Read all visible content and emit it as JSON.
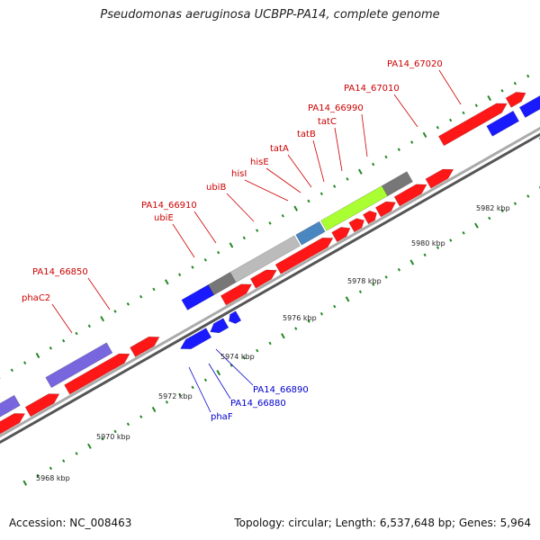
{
  "title": "Pseudomonas aeruginosa UCBPP-PA14, complete genome",
  "footer": {
    "accession": "Accession: NC_008463",
    "summary": "Topology: circular; Length: 6,537,648 bp; Genes: 5,964"
  },
  "colors": {
    "forward_cds": "#ff1a1a",
    "reverse_cds": "#1a1aff",
    "forward_label": "#cc0000",
    "reverse_label": "#0000cc",
    "backbone": "#888888",
    "tick": "#228822"
  },
  "scale_labels": [
    "5968 kbp",
    "5970 kbp",
    "5972 kbp",
    "5974 kbp",
    "5976 kbp",
    "5978 kbp",
    "5980 kbp",
    "5982 kbp"
  ],
  "forward_labels": [
    "phaC2",
    "PA14_66850",
    "ubiE",
    "PA14_66910",
    "ubiB",
    "hisI",
    "hisE",
    "tatA",
    "tatB",
    "tatC",
    "PA14_66990",
    "PA14_67010",
    "PA14_67020"
  ],
  "reverse_labels": [
    "phaF",
    "PA14_66880",
    "PA14_66890"
  ]
}
